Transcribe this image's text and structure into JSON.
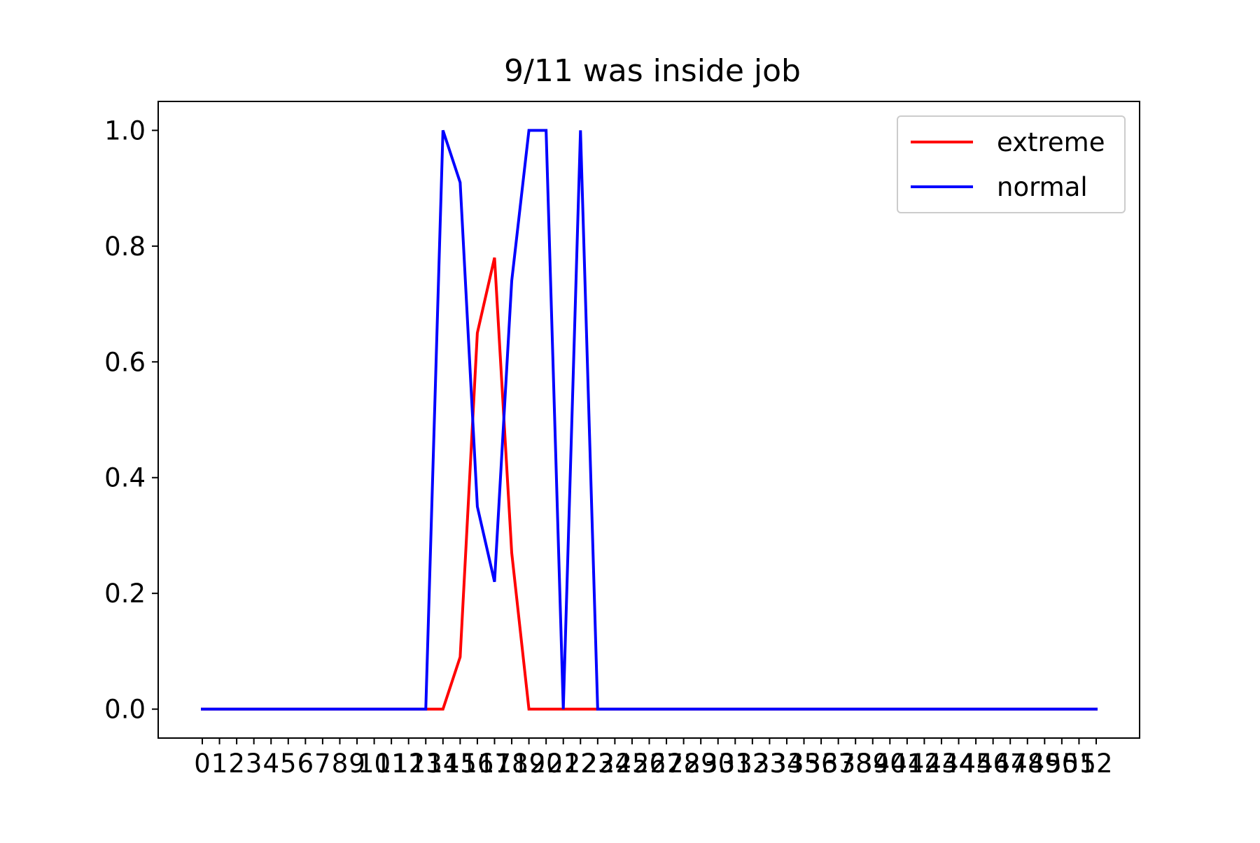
{
  "chart_data": {
    "type": "line",
    "title": "9/11 was inside job",
    "xlabel": "",
    "ylabel": "",
    "x": [
      "0",
      "1",
      "2",
      "3",
      "4",
      "5",
      "6",
      "7",
      "8",
      "9",
      "10",
      "11",
      "12",
      "13",
      "14",
      "15",
      "16",
      "17",
      "18",
      "19",
      "20",
      "21",
      "22",
      "23",
      "24",
      "25",
      "26",
      "27",
      "28",
      "29",
      "30",
      "31",
      "32",
      "33",
      "34",
      "35",
      "36",
      "37",
      "38",
      "39",
      "40",
      "41",
      "42",
      "43",
      "44",
      "45",
      "46",
      "47",
      "48",
      "49",
      "50",
      "51",
      "52"
    ],
    "ylim": [
      -0.05,
      1.05
    ],
    "yticks": [
      "0.0",
      "0.2",
      "0.4",
      "0.6",
      "0.8",
      "1.0"
    ],
    "grid": false,
    "legend_position": "top-right",
    "series": [
      {
        "name": "extreme",
        "color": "#ff0000",
        "values": [
          0,
          0,
          0,
          0,
          0,
          0,
          0,
          0,
          0,
          0,
          0,
          0,
          0,
          0,
          0,
          0.09,
          0.65,
          0.78,
          0.27,
          0,
          0,
          0,
          0,
          0,
          0,
          0,
          0,
          0,
          0,
          0,
          0,
          0,
          0,
          0,
          0,
          0,
          0,
          0,
          0,
          0,
          0,
          0,
          0,
          0,
          0,
          0,
          0,
          0,
          0,
          0,
          0,
          0,
          0
        ]
      },
      {
        "name": "normal",
        "color": "#0000ff",
        "values": [
          0,
          0,
          0,
          0,
          0,
          0,
          0,
          0,
          0,
          0,
          0,
          0,
          0,
          0,
          1.0,
          0.91,
          0.35,
          0.22,
          0.74,
          1.0,
          1.0,
          0,
          1.0,
          0,
          0,
          0,
          0,
          0,
          0,
          0,
          0,
          0,
          0,
          0,
          0,
          0,
          0,
          0,
          0,
          0,
          0,
          0,
          0,
          0,
          0,
          0,
          0,
          0,
          0,
          0,
          0,
          0,
          0
        ]
      }
    ]
  }
}
